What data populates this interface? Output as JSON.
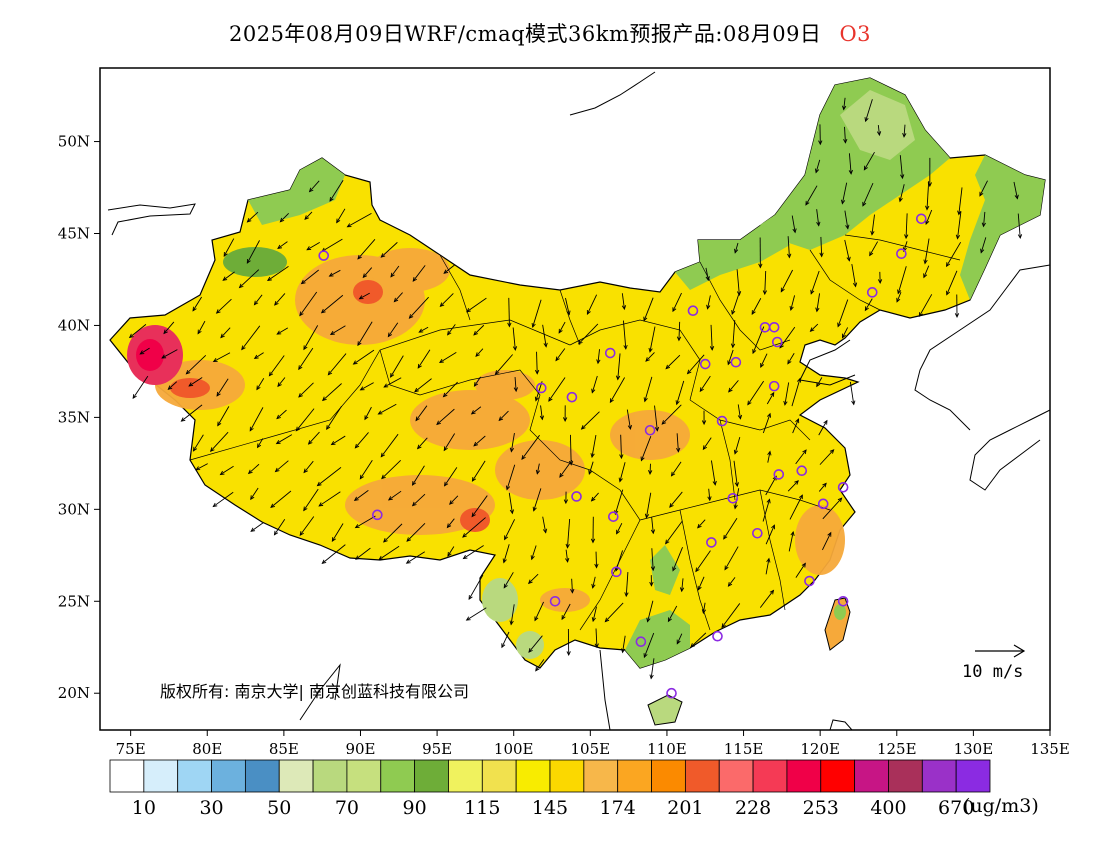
{
  "title": {
    "text": "2025年08月09日WRF/cmaq模式36km预报产品:08月09日",
    "species": "O3",
    "species_color": "#e8342c"
  },
  "map": {
    "lon_range": [
      73,
      135
    ],
    "lat_range": [
      18,
      54
    ],
    "x_ticks": [
      "75E",
      "80E",
      "85E",
      "90E",
      "95E",
      "100E",
      "105E",
      "110E",
      "115E",
      "120E",
      "125E",
      "130E",
      "135E"
    ],
    "y_ticks": [
      "20N",
      "25N",
      "30N",
      "35N",
      "40N",
      "45N",
      "50N"
    ],
    "copyright": "版权所有: 南京大学| 南京创蓝科技有限公司",
    "wind_reference": "10 m/s"
  },
  "colorbar": {
    "colors": [
      "#ffffff",
      "#d6eefb",
      "#9fd6f4",
      "#6cb1de",
      "#4a8fc4",
      "#dde9b8",
      "#b9d97e",
      "#c6e07e",
      "#8fcb51",
      "#6ead38",
      "#f0f25e",
      "#f1e14e",
      "#f8ec00",
      "#fbd800",
      "#f7b74a",
      "#fba621",
      "#fb8a00",
      "#f05a2a",
      "#fb6a6a",
      "#f53a55",
      "#f00048",
      "#ff0000",
      "#c71585",
      "#a9305a",
      "#9a31c8",
      "#8b2be2"
    ],
    "labels": [
      "10",
      "30",
      "50",
      "70",
      "90",
      "115",
      "145",
      "174",
      "201",
      "228",
      "253",
      "400",
      "670"
    ],
    "unit": "(ug/m3)"
  },
  "legend_colors": {
    "fill_dominant": "#f9e100",
    "fill_orange": "#f6a93a",
    "fill_green": "#7dbb44",
    "fill_red": "#e8305a",
    "circle_marker": "#8b2be2"
  }
}
